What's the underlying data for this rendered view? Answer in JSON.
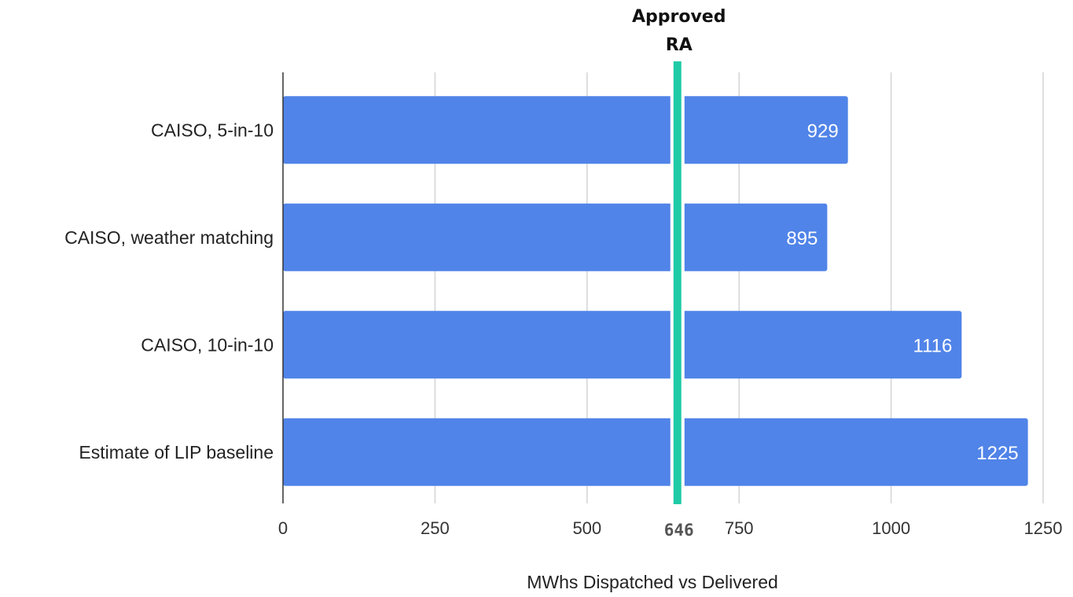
{
  "chart_data": {
    "type": "bar",
    "orientation": "horizontal",
    "categories": [
      "CAISO, 5-in-10",
      "CAISO, weather matching",
      "CAISO, 10-in-10",
      "Estimate of LIP baseline"
    ],
    "values": [
      929,
      895,
      1116,
      1225
    ],
    "value_labels": [
      "929",
      "895",
      "1116",
      "1225"
    ],
    "xlabel": "MWhs Dispatched vs Delivered",
    "xlim": [
      0,
      1250
    ],
    "x_ticks": [
      0,
      250,
      500,
      750,
      1000,
      1250
    ],
    "x_tick_labels": [
      "0",
      "250",
      "500",
      "750",
      "1000",
      "1250"
    ],
    "grid": "vertical",
    "bar_color": "#5084e8",
    "reference_line": {
      "value": 646,
      "value_label": "646",
      "label_line1": "Approved",
      "label_line2": "RA",
      "color": "#1fcaa7"
    }
  }
}
